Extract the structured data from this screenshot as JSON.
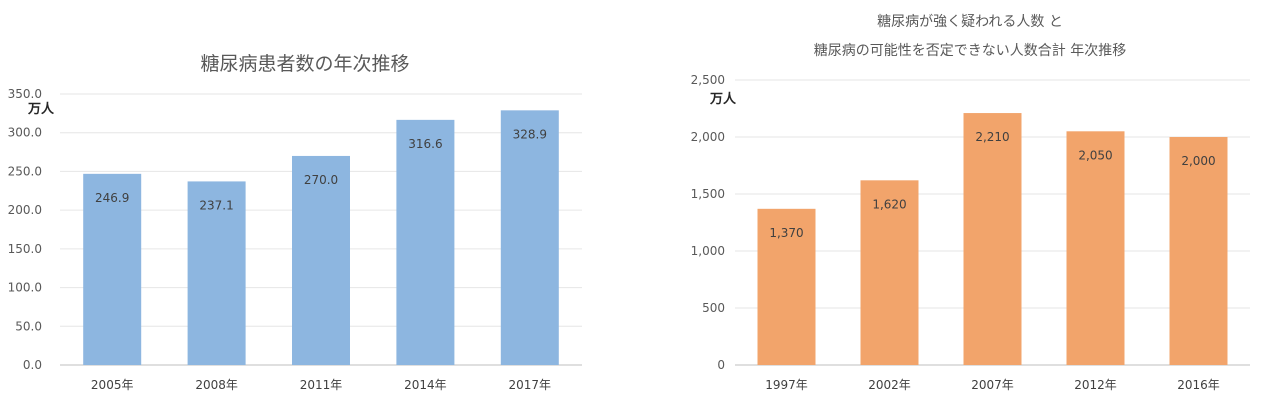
{
  "chart_data": [
    {
      "type": "bar",
      "title_lines": [
        "糖尿病患者数の年次推移"
      ],
      "unit_label": "万人",
      "categories": [
        "2005年",
        "2008年",
        "2011年",
        "2014年",
        "2017年"
      ],
      "values": [
        246.9,
        237.1,
        270.0,
        316.6,
        328.9
      ],
      "value_labels": [
        "246.9",
        "237.1",
        "270.0",
        "316.6",
        "328.9"
      ],
      "y_ticks": [
        "0.0",
        "50.0",
        "100.0",
        "150.0",
        "200.0",
        "250.0",
        "300.0",
        "350.0"
      ],
      "ylim": [
        0,
        350
      ],
      "bar_color": "#8db6e0",
      "grid": true
    },
    {
      "type": "bar",
      "title_lines": [
        "糖尿病が強く疑われる人数 と",
        "糖尿病の可能性を否定できない人数合計  年次推移"
      ],
      "unit_label": "万人",
      "categories": [
        "1997年",
        "2002年",
        "2007年",
        "2012年",
        "2016年"
      ],
      "values": [
        1370,
        1620,
        2210,
        2050,
        2000
      ],
      "value_labels": [
        "1,370",
        "1,620",
        "2,210",
        "2,050",
        "2,000"
      ],
      "y_ticks": [
        "0",
        "500",
        "1,000",
        "1,500",
        "2,000",
        "2,500"
      ],
      "ylim": [
        0,
        2500
      ],
      "bar_color": "#f2a46b",
      "grid": true
    }
  ]
}
